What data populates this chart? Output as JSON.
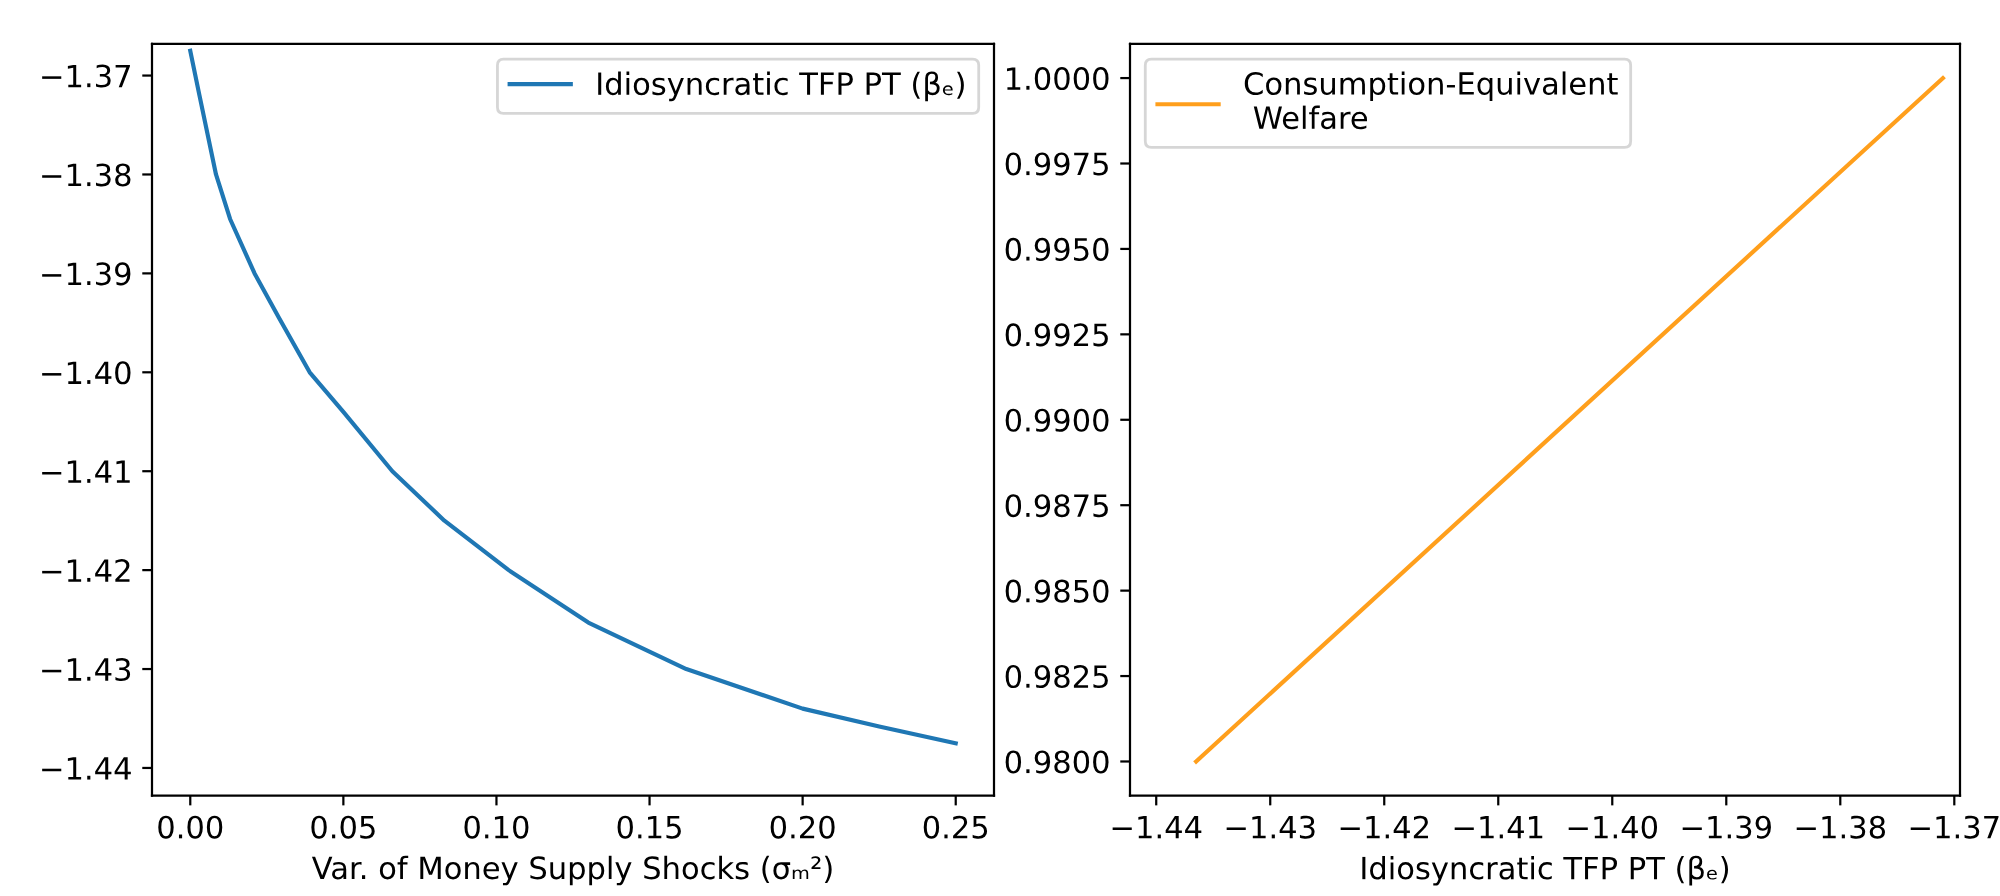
{
  "chart_data": [
    {
      "type": "line",
      "xlabel": "Var. of Money Supply Shocks (σₘ²)",
      "legend": "top right",
      "grid": false,
      "series": [
        {
          "name": "Idiosyncratic TFP PT (βₑ)",
          "color": "#1f77b4",
          "x": [
            0,
            0.003,
            0.0084,
            0.013,
            0.021,
            0.029,
            0.039,
            0.05,
            0.066,
            0.083,
            0.104,
            0.13,
            0.162,
            0.2,
            0.225,
            0.25
          ],
          "values": [
            -1.3675,
            -1.372,
            -1.38,
            -1.3845,
            -1.39,
            -1.3945,
            -1.4,
            -1.404,
            -1.41,
            -1.415,
            -1.42,
            -1.4253,
            -1.43,
            -1.434,
            -1.4358,
            -1.4375
          ]
        }
      ],
      "xlim": [
        -0.0125,
        0.2625
      ],
      "xticks": [
        {
          "value": 0,
          "label": "0.00"
        },
        {
          "value": 0.05,
          "label": "0.05"
        },
        {
          "value": 0.1,
          "label": "0.10"
        },
        {
          "value": 0.15,
          "label": "0.15"
        },
        {
          "value": 0.2,
          "label": "0.20"
        },
        {
          "value": 0.25,
          "label": "0.25"
        }
      ],
      "ylim": [
        -1.4428,
        -1.3668
      ],
      "yticks": [
        {
          "value": -1.44,
          "label": "−1.44"
        },
        {
          "value": -1.43,
          "label": "−1.43"
        },
        {
          "value": -1.42,
          "label": "−1.42"
        },
        {
          "value": -1.41,
          "label": "−1.41"
        },
        {
          "value": -1.4,
          "label": "−1.40"
        },
        {
          "value": -1.39,
          "label": "−1.39"
        },
        {
          "value": -1.38,
          "label": "−1.38"
        },
        {
          "value": -1.37,
          "label": "−1.37"
        }
      ]
    },
    {
      "type": "line",
      "xlabel": "Idiosyncratic TFP PT (βₑ)",
      "legend": "top left",
      "grid": false,
      "series": [
        {
          "name": "Consumption-Equivalent\n Welfare",
          "color": "#ff9f1c",
          "x": [
            -1.4365,
            -1.371
          ],
          "values": [
            0.98,
            1.0
          ]
        }
      ],
      "xlim": [
        -1.4423,
        -1.3695
      ],
      "xticks": [
        {
          "value": -1.44,
          "label": "−1.44"
        },
        {
          "value": -1.43,
          "label": "−1.43"
        },
        {
          "value": -1.42,
          "label": "−1.42"
        },
        {
          "value": -1.41,
          "label": "−1.41"
        },
        {
          "value": -1.4,
          "label": "−1.40"
        },
        {
          "value": -1.39,
          "label": "−1.39"
        },
        {
          "value": -1.38,
          "label": "−1.38"
        },
        {
          "value": -1.37,
          "label": "−1.37"
        }
      ],
      "ylim": [
        0.979,
        1.001
      ],
      "yticks": [
        {
          "value": 0.98,
          "label": "0.9800"
        },
        {
          "value": 0.9825,
          "label": "0.9825"
        },
        {
          "value": 0.985,
          "label": "0.9850"
        },
        {
          "value": 0.9875,
          "label": "0.9875"
        },
        {
          "value": 0.99,
          "label": "0.9900"
        },
        {
          "value": 0.9925,
          "label": "0.9925"
        },
        {
          "value": 0.995,
          "label": "0.9950"
        },
        {
          "value": 0.9975,
          "label": "0.9975"
        },
        {
          "value": 1.0,
          "label": "1.0000"
        }
      ]
    }
  ]
}
